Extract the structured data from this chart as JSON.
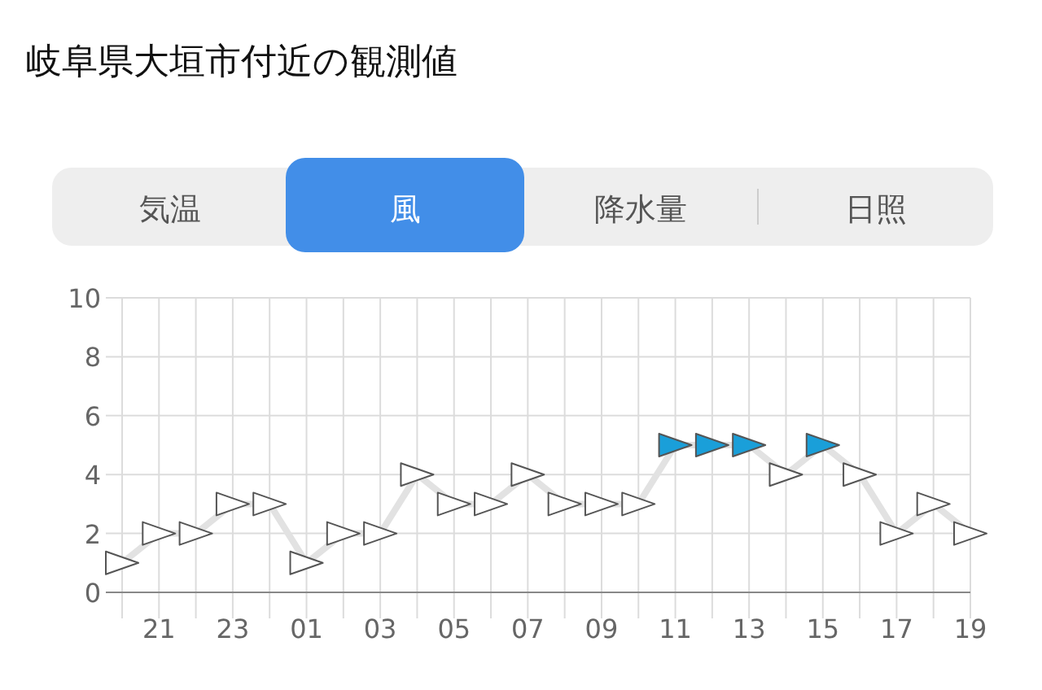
{
  "chart_data": {
    "type": "line",
    "title": "岐阜県大垣市付近の観測値",
    "annotations": [
      "気温",
      "風",
      "降水量",
      "日照"
    ],
    "categories": [
      null,
      "21",
      null,
      "23",
      null,
      "01",
      null,
      "03",
      null,
      "05",
      null,
      "07",
      null,
      "09",
      null,
      "11",
      null,
      "13",
      null,
      "15",
      null,
      "17",
      null,
      "19"
    ],
    "series": [
      {
        "color": "#e2e2e2",
        "values": [
          1,
          2,
          2,
          3,
          3,
          1,
          2,
          2,
          4,
          3,
          3,
          4,
          3,
          3,
          3,
          5,
          5,
          5,
          4,
          5,
          4,
          2,
          3,
          2
        ],
        "colors": [
          "#ffffff",
          "#ffffff",
          "#ffffff",
          "#ffffff",
          "#ffffff",
          "#ffffff",
          "#ffffff",
          "#ffffff",
          "#ffffff",
          "#ffffff",
          "#ffffff",
          "#ffffff",
          "#ffffff",
          "#ffffff",
          "#ffffff",
          "#1a9fd9",
          "#1a9fd9",
          "#1a9fd9",
          "#ffffff",
          "#1a9fd9",
          "#ffffff",
          "#ffffff",
          "#ffffff",
          "#ffffff"
        ]
      }
    ],
    "ylim": [
      0,
      10
    ],
    "yticks": [
      0,
      2,
      4,
      6,
      8,
      10
    ],
    "grid": true,
    "marker": "triangle",
    "line_style": "solid"
  }
}
